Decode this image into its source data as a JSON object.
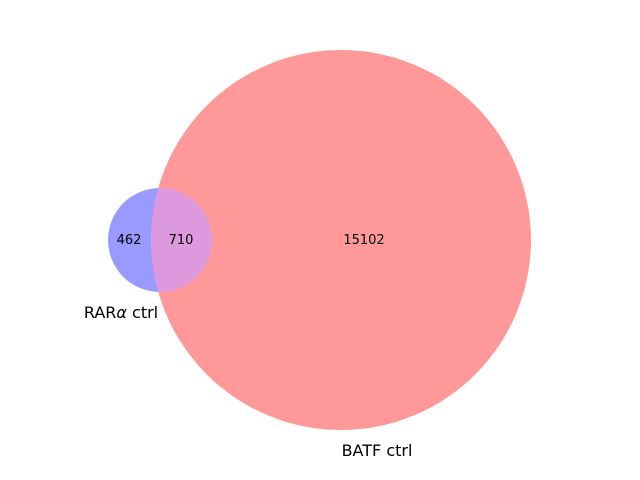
{
  "sets": [
    {
      "id": "rara",
      "name_prefix": "RAR",
      "name_greek": "α",
      "name_suffix": " ctrl",
      "color": "#9999ff"
    },
    {
      "id": "batf",
      "name": "BATF ctrl",
      "color": "#ff9999"
    }
  ],
  "overlap_color": "#dd99dd",
  "counts": {
    "rara_only": "462",
    "intersection": "710",
    "batf_only": "15102"
  }
}
